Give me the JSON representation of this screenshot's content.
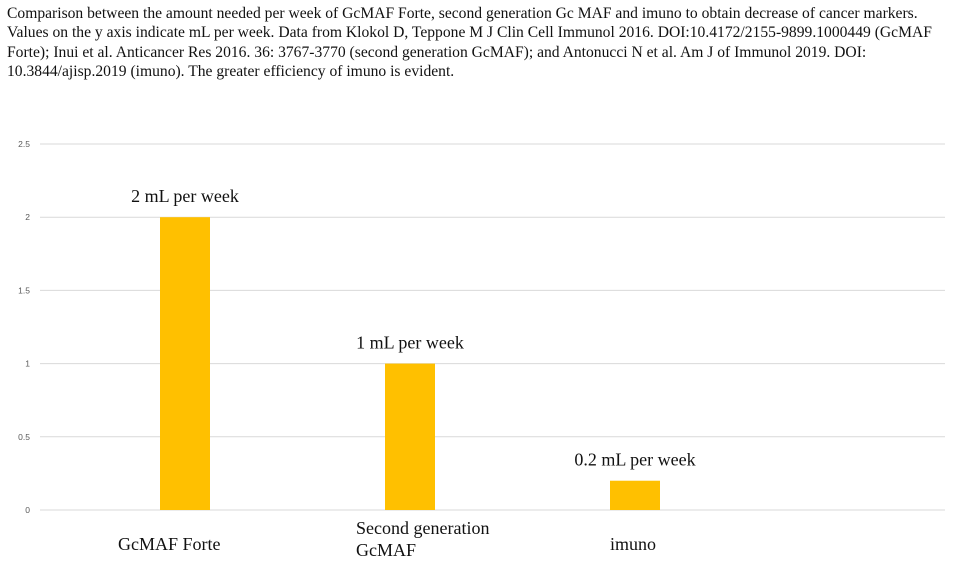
{
  "caption": "Comparison between the amount needed per week of GcMAF Forte, second generation Gc MAF and imuno to obtain decrease of cancer markers. Values on the y axis indicate mL per week. Data from Klokol D, Teppone M J Clin Cell Immunol 2016. DOI:10.4172/2155-9899.1000449 (GcMAF Forte); Inui et al. Anticancer Res 2016. 36: 3767-3770 (second generation GcMAF); and Antonucci N et al. Am J of  Immunol 2019. DOI: 10.3844/ajisp.2019 (imuno). The greater efficiency of imuno is evident.",
  "chart_data": {
    "type": "bar",
    "categories": [
      [
        "GcMAF Forte"
      ],
      [
        "Second generation",
        "GcMAF"
      ],
      [
        "imuno"
      ]
    ],
    "values": [
      2,
      1,
      0.2
    ],
    "data_labels": [
      "2 mL per week",
      "1 mL per week",
      "0.2 mL per week"
    ],
    "ylim": [
      0,
      2.5
    ],
    "yticks": [
      "0",
      "0.5",
      "1",
      "1.5",
      "2",
      "2.5"
    ],
    "grid": true,
    "legend": "none",
    "bar_color": "#FFC000",
    "grid_color": "#D9D9D9"
  }
}
